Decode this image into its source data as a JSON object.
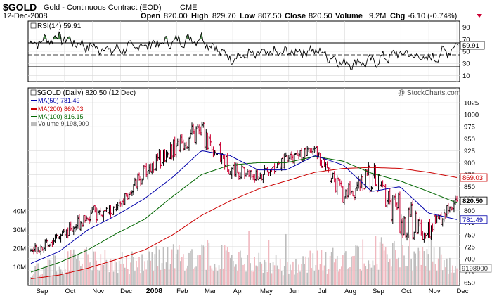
{
  "header": {
    "symbol": "$GOLD",
    "name": "Gold - Continuous Contract (EOD)",
    "exchange": "CME",
    "date": "12-Dec-2008",
    "open_label": "Open",
    "open": "820.00",
    "high_label": "High",
    "high": "829.70",
    "low_label": "Low",
    "low": "807.50",
    "close_label": "Close",
    "close": "820.50",
    "volume_label": "Volume",
    "volume": "9.2M",
    "chg_label": "Chg",
    "chg": "-6.10 (-0.74%)",
    "watermark": "@ StockCharts.com"
  },
  "colors": {
    "up": "#000000",
    "down": "#cc0033",
    "ma50": "#0000aa",
    "ma200": "#cc0000",
    "ma100": "#006600",
    "rsi_fill": "#4f8a4f",
    "vol_up": "#bdbdbd",
    "vol_down": "#f0b8bf",
    "grid": "#d9d9d9"
  },
  "rsi_panel": {
    "legend": "RSI(14) 59.91",
    "current_badge": "59.91"
  },
  "price_panel": {
    "legend_title": "$GOLD (Daily) 820.50 (12 Dec)",
    "legend_ma50": "MA(50) 781.49",
    "legend_ma200": "MA(200) 869.03",
    "legend_ma100": "MA(100) 816.15",
    "legend_volume": "Volume 9,198,900",
    "badge_ma200": "869.03",
    "badge_close": "820.50",
    "badge_ma50": "781.49",
    "badge_volume": "9198900"
  },
  "chart_data": [
    {
      "type": "line",
      "title": "RSI(14)",
      "ylim": [
        0,
        100
      ],
      "y_ticks": [
        10,
        30,
        50,
        70,
        90
      ],
      "overbought": 70,
      "oversold": 30,
      "current": 59.91,
      "x_months": [
        "Sep",
        "Oct",
        "Nov",
        "Dec",
        "2008",
        "Feb",
        "Mar",
        "Apr",
        "May",
        "Jun",
        "Jul",
        "Aug",
        "Sep",
        "Oct",
        "Nov",
        "Dec"
      ],
      "monthly_rsi": [
        62,
        74,
        58,
        52,
        60,
        66,
        72,
        40,
        45,
        48,
        52,
        30,
        33,
        48,
        36,
        59.91
      ]
    },
    {
      "type": "candlestick",
      "title": "$GOLD (Daily) 820.50 (12 Dec)",
      "ylim": [
        650,
        1050
      ],
      "y_ticks": [
        650,
        675,
        700,
        725,
        750,
        775,
        800,
        825,
        850,
        875,
        900,
        925,
        950,
        975,
        1000,
        1025
      ],
      "x_months": [
        "Sep",
        "Oct",
        "Nov",
        "Dec",
        "2008",
        "Feb",
        "Mar",
        "Apr",
        "May",
        "Jun",
        "Jul",
        "Aug",
        "Sep",
        "Oct",
        "Nov",
        "Dec"
      ],
      "monthly_close": [
        715,
        745,
        790,
        800,
        880,
        930,
        965,
        890,
        870,
        905,
        925,
        830,
        870,
        790,
        760,
        820.5
      ],
      "monthly_high": [
        720,
        755,
        840,
        830,
        935,
        965,
        1033,
        945,
        910,
        925,
        990,
        905,
        900,
        940,
        830,
        830
      ],
      "monthly_low": [
        660,
        705,
        735,
        775,
        845,
        880,
        875,
        860,
        850,
        860,
        910,
        765,
        740,
        690,
        700,
        760
      ],
      "ma50": [
        690,
        715,
        760,
        790,
        825,
        870,
        925,
        915,
        885,
        885,
        915,
        895,
        840,
        850,
        795,
        781.49
      ],
      "ma100": [
        672,
        692,
        718,
        752,
        782,
        830,
        875,
        895,
        900,
        900,
        913,
        903,
        878,
        862,
        840,
        816.15
      ],
      "ma200": [
        658,
        666,
        680,
        698,
        718,
        750,
        790,
        820,
        845,
        862,
        880,
        888,
        890,
        888,
        880,
        869.03
      ],
      "close": 820.5,
      "ma50_last": 781.49,
      "ma100_last": 816.15,
      "ma200_last": 869.03
    },
    {
      "type": "bar",
      "title": "Volume",
      "ylim": [
        0,
        40000000
      ],
      "y_tick_labels": [
        "10M",
        "20M",
        "30M",
        "40M"
      ],
      "y_tick_values": [
        10000000,
        20000000,
        30000000,
        40000000
      ],
      "x_months": [
        "Sep",
        "Oct",
        "Nov",
        "Dec",
        "2008",
        "Feb",
        "Mar",
        "Apr",
        "May",
        "Jun",
        "Jul",
        "Aug",
        "Sep",
        "Oct",
        "Nov",
        "Dec"
      ],
      "monthly_avg_volume": [
        9000000,
        11000000,
        14000000,
        11000000,
        13000000,
        14000000,
        16000000,
        13000000,
        11000000,
        10000000,
        12000000,
        14000000,
        17000000,
        15000000,
        16000000,
        9198900
      ],
      "last": 9198900
    }
  ]
}
